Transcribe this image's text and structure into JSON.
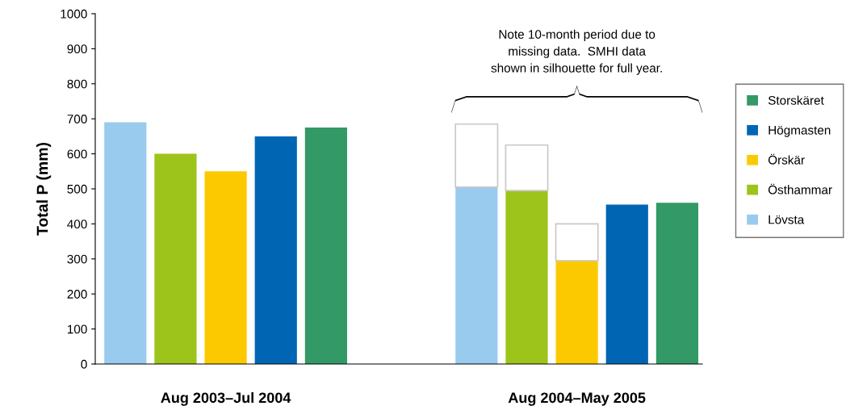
{
  "chart_data": {
    "type": "bar",
    "stacked": true,
    "ylabel": "Total P (mm)",
    "categories": [
      null,
      null,
      null,
      null,
      null,
      null,
      null,
      null,
      null,
      null,
      null,
      null
    ],
    "ylim": [
      0,
      1000
    ],
    "yticks": [
      0,
      100,
      200,
      300,
      400,
      500,
      600,
      700,
      800,
      900,
      1000
    ],
    "grid": false,
    "legend": "right",
    "series": [
      {
        "name": "Lövsta",
        "color": "#99cbee",
        "values": [
          690,
          null,
          null,
          null,
          null,
          null,
          null,
          505,
          null,
          null,
          null,
          null
        ]
      },
      {
        "name": "Östhammar",
        "color": "#9dc41a",
        "values": [
          null,
          600,
          null,
          null,
          null,
          null,
          null,
          null,
          495,
          null,
          null,
          null
        ]
      },
      {
        "name": "Örskär",
        "color": "#fcc900",
        "values": [
          null,
          null,
          550,
          null,
          null,
          null,
          null,
          null,
          null,
          295,
          null,
          null
        ]
      },
      {
        "name": "Högmasten",
        "color": "#0066b3",
        "values": [
          null,
          null,
          null,
          650,
          null,
          null,
          null,
          null,
          null,
          null,
          455,
          null
        ]
      },
      {
        "name": "Storskäret",
        "color": "#339966",
        "values": [
          null,
          null,
          null,
          null,
          675,
          null,
          null,
          null,
          null,
          null,
          null,
          460
        ]
      },
      {
        "color": "#ffffff",
        "values": [
          null,
          null,
          null,
          null,
          null,
          null,
          null,
          180,
          130,
          105,
          null,
          null
        ]
      }
    ],
    "annotations": [
      "Aug 2003–Jul 2004",
      "Aug 2004–May 2005",
      "Note 10-month period due to\nmissing data.  SMHI data\nshown in silhouette for full year."
    ]
  }
}
